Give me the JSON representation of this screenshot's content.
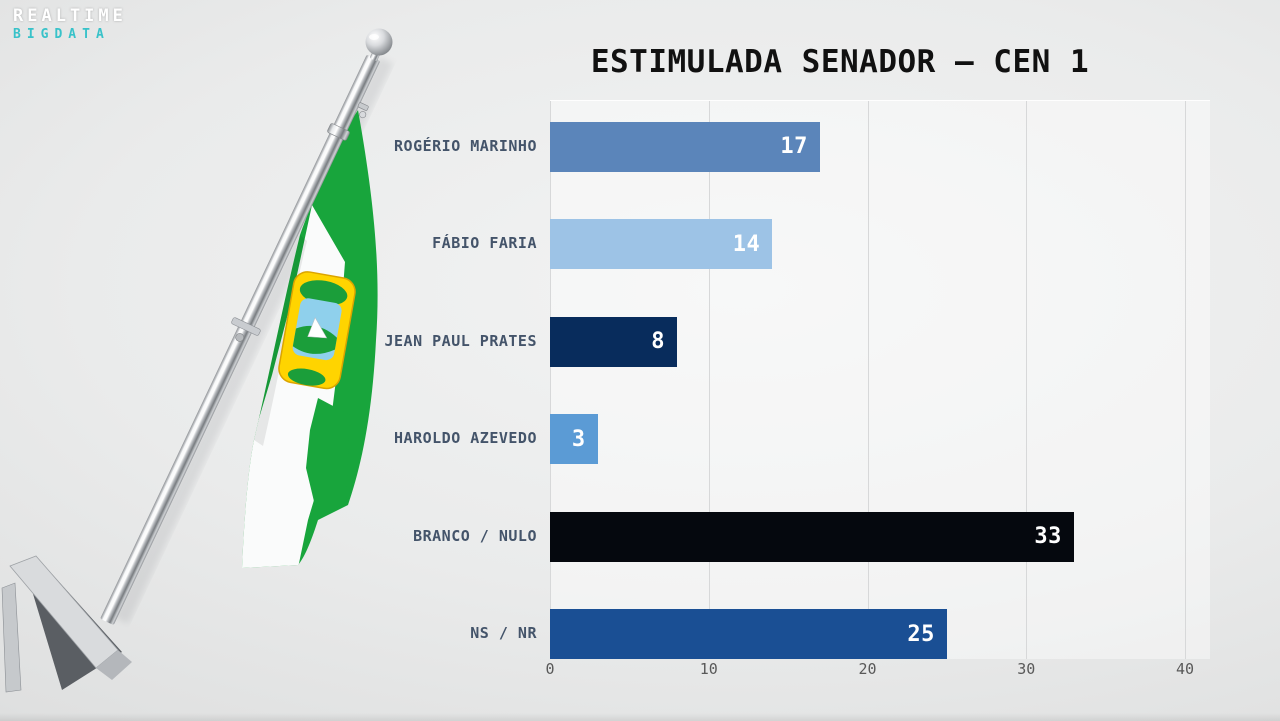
{
  "logo": {
    "line1": "REALTIME",
    "line2": "BIGDATA",
    "line1_color": "#ffffff",
    "line2_color": "#38c2c9"
  },
  "chart_data": {
    "type": "bar",
    "orientation": "horizontal",
    "title": "ESTIMULADA SENADOR – CEN 1",
    "title_color": "#111111",
    "categories": [
      "ROGÉRIO MARINHO",
      "FÁBIO FARIA",
      "JEAN PAUL PRATES",
      "HAROLDO AZEVEDO",
      "BRANCO / NULO",
      "NS / NR"
    ],
    "values": [
      17,
      14,
      8,
      3,
      33,
      25
    ],
    "bar_colors": [
      "#5b85ba",
      "#9dc3e6",
      "#082c5c",
      "#5b9bd5",
      "#05080e",
      "#1a4f94"
    ],
    "value_label_color": "#ffffff",
    "value_label_position": "inside-end",
    "category_label_color": "#44546a",
    "xlabel": "",
    "ylabel": "",
    "xlim": [
      0,
      40
    ],
    "xticks": [
      0,
      10,
      20,
      30,
      40
    ],
    "xtick_color": "#595959",
    "grid": "vertical",
    "gridline_color": "#d7d8d9",
    "legend": "none"
  },
  "decor": {
    "flag": {
      "name": "flag-of-rio-grande-do-norte-on-pole",
      "green": "#18a53c",
      "white": "#fafbfb",
      "emblem_yellow": "#ffd400",
      "emblem_sky": "#8fd0ec",
      "pole_metal": "#b9bcc0"
    },
    "background_page": "#eaebeb",
    "background_plot": "rgba(255,255,255,0.42)"
  }
}
